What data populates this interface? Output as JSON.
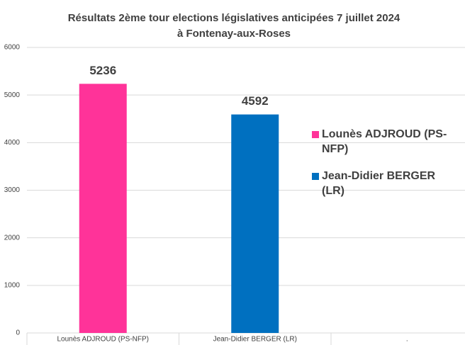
{
  "chart_data": {
    "type": "bar",
    "title": [
      "Résultats 2ème tour  elections législatives anticipées 7 juillet 2024",
      "à Fontenay-aux-Roses"
    ],
    "categories": [
      "Lounès ADJROUD (PS-NFP)",
      "Jean-Didier BERGER (LR)",
      "."
    ],
    "values": [
      5236,
      4592,
      null
    ],
    "colors": [
      "#ff3399",
      "#0070c0",
      null
    ],
    "ylim": [
      0,
      6000
    ],
    "yticks": [
      0,
      1000,
      2000,
      3000,
      4000,
      5000,
      6000
    ],
    "grid": true
  }
}
